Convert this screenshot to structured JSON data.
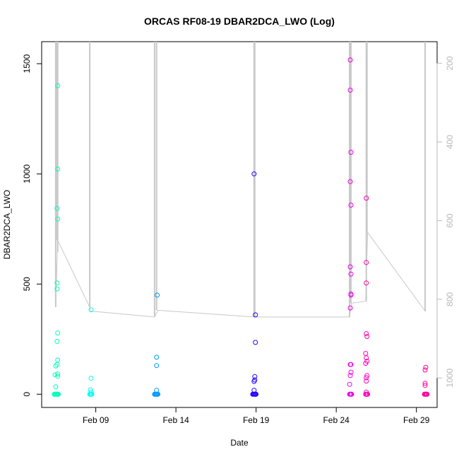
{
  "chart_data": {
    "type": "scatter",
    "title": "ORCAS RF08-19 DBAR2DCA_LWO (Log)",
    "xlabel": "Date",
    "ylabel": "DBAR2DCA_LWO",
    "xlim": [
      "2016-02-05T15:00",
      "2016-03-01T07:00"
    ],
    "ylim": [
      -60,
      1600
    ],
    "x_ticks": [
      {
        "label": "Feb 09",
        "date": "2016-02-09T00:00"
      },
      {
        "label": "Feb 14",
        "date": "2016-02-14T00:00"
      },
      {
        "label": "Feb 19",
        "date": "2016-02-19T00:00"
      },
      {
        "label": "Feb 24",
        "date": "2016-02-24T00:00"
      },
      {
        "label": "Feb 29",
        "date": "2016-02-29T00:00"
      }
    ],
    "y_ticks": [
      0,
      500,
      1000,
      1500
    ],
    "right_axis": {
      "ylim": [
        1075,
        145
      ],
      "ticks": [
        200,
        400,
        600,
        800,
        1000
      ],
      "color": "#b8b8b8"
    },
    "grid": false,
    "legend": "none",
    "series": [
      {
        "color": "#00ffbb",
        "points": [
          [
            "2016-02-06T10:00",
            0
          ],
          [
            "2016-02-06T11:00",
            0
          ],
          [
            "2016-02-06T12:00",
            0
          ],
          [
            "2016-02-06T13:00",
            0
          ],
          [
            "2016-02-06T14:00",
            0
          ],
          [
            "2016-02-06T15:00",
            0
          ],
          [
            "2016-02-06T16:00",
            0
          ],
          [
            "2016-02-06T11:00",
            88
          ],
          [
            "2016-02-06T12:00",
            128
          ],
          [
            "2016-02-06T12:00",
            34
          ],
          [
            "2016-02-06T14:00",
            135
          ],
          [
            "2016-02-06T15:00",
            155
          ],
          [
            "2016-02-06T15:00",
            278
          ],
          [
            "2016-02-06T14:00",
            240
          ],
          [
            "2016-02-06T15:00",
            92
          ],
          [
            "2016-02-06T15:00",
            82
          ],
          [
            "2016-02-06T14:00",
            478
          ],
          [
            "2016-02-06T14:00",
            505
          ],
          [
            "2016-02-06T15:00",
            795
          ],
          [
            "2016-02-06T14:00",
            843
          ],
          [
            "2016-02-06T15:00",
            1022
          ],
          [
            "2016-02-06T15:00",
            1400
          ]
        ]
      },
      {
        "color": "#00ffee",
        "points": [
          [
            "2016-02-08T15:00",
            0
          ],
          [
            "2016-02-08T16:00",
            0
          ],
          [
            "2016-02-08T17:00",
            0
          ],
          [
            "2016-02-08T18:00",
            0
          ],
          [
            "2016-02-08T16:00",
            20
          ],
          [
            "2016-02-08T17:00",
            10
          ],
          [
            "2016-02-08T17:00",
            72
          ],
          [
            "2016-02-08T17:00",
            383
          ]
        ]
      },
      {
        "color": "#0099ff",
        "points": [
          [
            "2016-02-12T16:00",
            0
          ],
          [
            "2016-02-12T17:00",
            0
          ],
          [
            "2016-02-12T18:00",
            0
          ],
          [
            "2016-02-12T19:00",
            0
          ],
          [
            "2016-02-12T20:00",
            0
          ],
          [
            "2016-02-12T21:00",
            0
          ],
          [
            "2016-02-12T19:00",
            18
          ],
          [
            "2016-02-12T19:00",
            130
          ],
          [
            "2016-02-12T19:00",
            168
          ],
          [
            "2016-02-12T20:00",
            450
          ]
        ]
      },
      {
        "color": "#2200ff",
        "points": [
          [
            "2016-02-18T19:00",
            0
          ],
          [
            "2016-02-18T20:00",
            0
          ],
          [
            "2016-02-18T21:00",
            0
          ],
          [
            "2016-02-18T22:00",
            0
          ],
          [
            "2016-02-18T23:00",
            0
          ],
          [
            "2016-02-19T00:00",
            0
          ],
          [
            "2016-02-18T21:00",
            18
          ],
          [
            "2016-02-18T21:00",
            58
          ],
          [
            "2016-02-18T22:00",
            65
          ],
          [
            "2016-02-18T22:00",
            80
          ],
          [
            "2016-02-18T23:00",
            235
          ],
          [
            "2016-02-18T23:00",
            360
          ],
          [
            "2016-02-18T21:00",
            1000
          ]
        ]
      },
      {
        "color": "#ee00ee",
        "points": [
          [
            "2016-02-24T20:00",
            0
          ],
          [
            "2016-02-24T21:00",
            0
          ],
          [
            "2016-02-24T22:00",
            0
          ],
          [
            "2016-02-24T23:00",
            0
          ],
          [
            "2016-02-24T20:00",
            45
          ],
          [
            "2016-02-24T21:00",
            85
          ],
          [
            "2016-02-24T22:00",
            100
          ],
          [
            "2016-02-24T21:00",
            135
          ],
          [
            "2016-02-24T22:00",
            135
          ],
          [
            "2016-02-24T21:00",
            392
          ],
          [
            "2016-02-24T22:00",
            450
          ],
          [
            "2016-02-24T22:00",
            455
          ],
          [
            "2016-02-24T22:00",
            545
          ],
          [
            "2016-02-24T21:00",
            578
          ],
          [
            "2016-02-24T22:00",
            858
          ],
          [
            "2016-02-24T21:00",
            965
          ],
          [
            "2016-02-24T22:00",
            1098
          ],
          [
            "2016-02-24T21:00",
            1380
          ],
          [
            "2016-02-24T21:00",
            1517
          ]
        ]
      },
      {
        "color": "#ff00bb",
        "points": [
          [
            "2016-02-25T20:00",
            0
          ],
          [
            "2016-02-25T21:00",
            0
          ],
          [
            "2016-02-25T22:00",
            0
          ],
          [
            "2016-02-25T23:00",
            0
          ],
          [
            "2016-02-25T21:00",
            10
          ],
          [
            "2016-02-25T21:00",
            60
          ],
          [
            "2016-02-25T21:00",
            75
          ],
          [
            "2016-02-25T22:00",
            85
          ],
          [
            "2016-02-25T20:00",
            140
          ],
          [
            "2016-02-25T22:00",
            150
          ],
          [
            "2016-02-25T21:00",
            165
          ],
          [
            "2016-02-25T20:00",
            185
          ],
          [
            "2016-02-25T22:00",
            262
          ],
          [
            "2016-02-25T21:00",
            275
          ],
          [
            "2016-02-25T21:00",
            505
          ],
          [
            "2016-02-25T21:00",
            598
          ],
          [
            "2016-02-25T21:00",
            890
          ]
        ]
      },
      {
        "color": "#ff0099",
        "points": [
          [
            "2016-02-29T12:00",
            0
          ],
          [
            "2016-02-29T13:00",
            0
          ],
          [
            "2016-02-29T14:00",
            0
          ],
          [
            "2016-02-29T15:00",
            0
          ],
          [
            "2016-02-29T16:00",
            0
          ],
          [
            "2016-02-29T13:00",
            40
          ],
          [
            "2016-02-29T13:00",
            50
          ],
          [
            "2016-02-29T13:00",
            110
          ],
          [
            "2016-02-29T14:00",
            122
          ]
        ]
      }
    ],
    "altitude_trace": {
      "color": "#c8c8c8",
      "axis": "right",
      "segments": [
        {
          "line": [
            [
              "2016-02-06T12:00",
              820
            ],
            [
              "2016-02-06T15:00",
              650
            ],
            [
              "2016-02-08T15:00",
              820
            ],
            [
              "2016-02-08T16:00",
              830
            ],
            [
              "2016-02-12T16:00",
              845
            ],
            [
              "2016-02-12T21:00",
              828
            ],
            [
              "2016-02-18T21:00",
              845
            ],
            [
              "2016-02-18T22:00",
              845
            ],
            [
              "2016-02-24T20:00",
              845
            ],
            [
              "2016-02-24T23:00",
              810
            ],
            [
              "2016-02-25T20:00",
              805
            ],
            [
              "2016-02-25T23:00",
              630
            ],
            [
              "2016-02-29T13:00",
              830
            ],
            [
              "2016-02-29T14:00",
              830
            ]
          ]
        }
      ],
      "spikes": [
        {
          "date": "2016-02-06T12:00",
          "top": 145,
          "bottom": 820
        },
        {
          "date": "2016-02-06T14:00",
          "top": 145,
          "bottom": 650
        },
        {
          "date": "2016-02-06T15:00",
          "top": 145,
          "bottom": 680
        },
        {
          "date": "2016-02-08T15:00",
          "top": 145,
          "bottom": 820
        },
        {
          "date": "2016-02-12T16:00",
          "top": 145,
          "bottom": 845
        },
        {
          "date": "2016-02-12T19:00",
          "top": 145,
          "bottom": 828
        },
        {
          "date": "2016-02-18T21:00",
          "top": 145,
          "bottom": 845
        },
        {
          "date": "2016-02-18T22:00",
          "top": 145,
          "bottom": 845
        },
        {
          "date": "2016-02-24T20:00",
          "top": 145,
          "bottom": 845
        },
        {
          "date": "2016-02-24T22:00",
          "top": 145,
          "bottom": 810
        },
        {
          "date": "2016-02-25T21:00",
          "top": 145,
          "bottom": 805
        },
        {
          "date": "2016-02-25T22:00",
          "top": 145,
          "bottom": 630
        },
        {
          "date": "2016-02-29T13:00",
          "top": 145,
          "bottom": 830
        }
      ]
    }
  }
}
